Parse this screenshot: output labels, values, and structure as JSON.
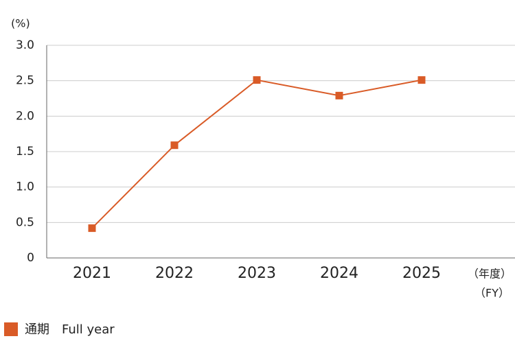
{
  "chart_data": {
    "type": "line",
    "y_unit": "(%)",
    "x_label": [
      "（年度）",
      "（FY）"
    ],
    "categories": [
      "2021",
      "2022",
      "2023",
      "2024",
      "2025"
    ],
    "series": [
      {
        "name": "通期　Full year",
        "color": "#d95b27",
        "values": [
          0.42,
          1.59,
          2.51,
          2.29,
          2.51
        ]
      }
    ],
    "ylim": [
      0,
      3
    ],
    "yticks": [
      0,
      0.5,
      {
        "value": 1,
        "label": "1.0"
      },
      1.5,
      {
        "value": 2,
        "label": "2.0"
      },
      2.5,
      {
        "value": 3,
        "label": "3.0"
      }
    ],
    "grid": true
  }
}
